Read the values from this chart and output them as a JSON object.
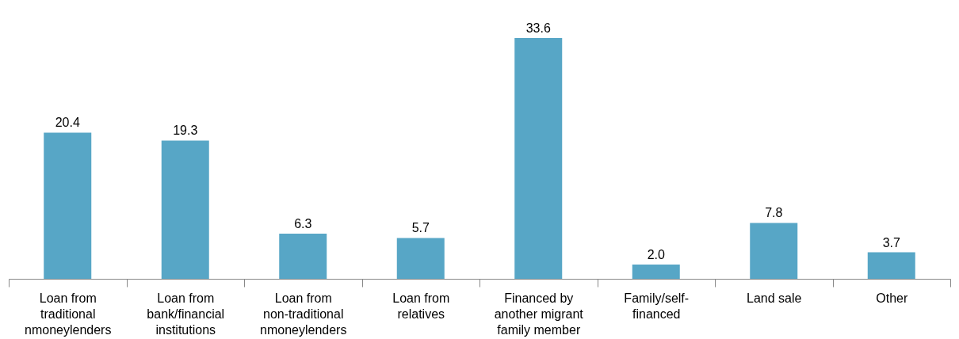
{
  "chart_data": {
    "type": "bar",
    "categories": [
      "Loan from traditional nmoneylenders",
      "Loan from bank/financial institutions",
      "Loan from non-traditional nmoneylenders",
      "Loan from relatives",
      "Financed by another migrant family member",
      "Family/self-financed",
      "Land sale",
      "Other"
    ],
    "values": [
      20.4,
      19.3,
      6.3,
      5.7,
      33.6,
      2.0,
      7.8,
      3.7
    ],
    "value_labels": [
      "20.4",
      "19.3",
      "6.3",
      "5.7",
      "33.6",
      "2.0",
      "7.8",
      "3.7"
    ],
    "color": "#57a6c6",
    "grid": false
  }
}
